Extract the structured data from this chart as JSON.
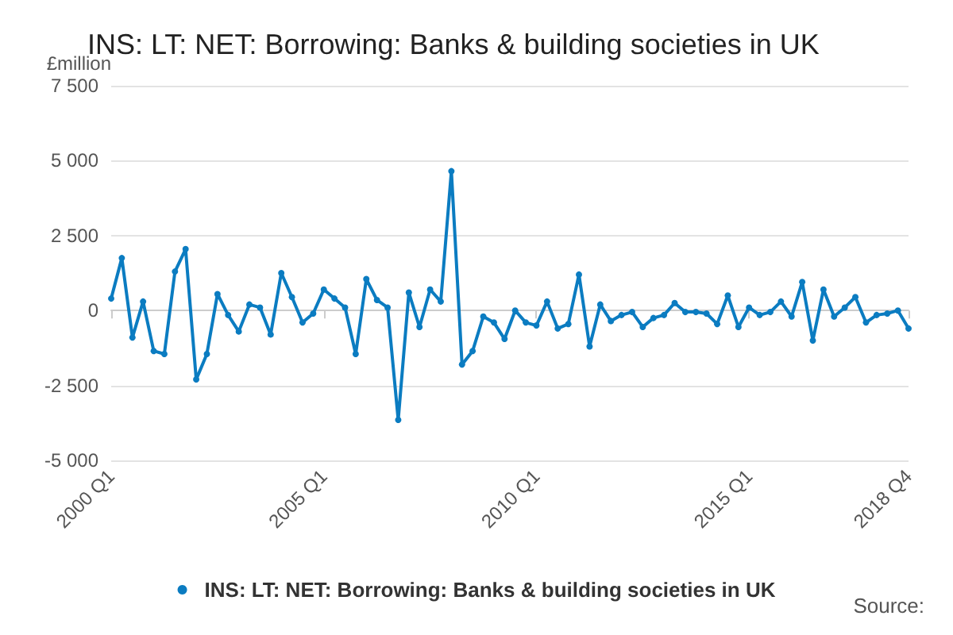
{
  "chart_data": {
    "type": "line",
    "title": "INS: LT: NET: Borrowing: Banks & building societies in UK",
    "ylabel": "£million",
    "annotations": [
      "Source:"
    ],
    "categories": [
      "2000 Q1",
      null,
      null,
      null,
      null,
      null,
      null,
      null,
      null,
      null,
      null,
      null,
      null,
      null,
      null,
      null,
      null,
      null,
      null,
      null,
      "2005 Q1",
      null,
      null,
      null,
      null,
      null,
      null,
      null,
      null,
      null,
      null,
      null,
      null,
      null,
      null,
      null,
      null,
      null,
      null,
      null,
      "2010 Q1",
      null,
      null,
      null,
      null,
      null,
      null,
      null,
      null,
      null,
      null,
      null,
      null,
      null,
      null,
      null,
      null,
      null,
      null,
      null,
      "2015 Q1",
      null,
      null,
      null,
      null,
      null,
      null,
      null,
      null,
      null,
      null,
      null,
      null,
      null,
      null,
      "2018 Q4"
    ],
    "series": [
      {
        "name": "INS: LT: NET: Borrowing: Banks & building societies in UK",
        "color": "#0b7cc1",
        "values": [
          400,
          1750,
          -900,
          300,
          -1350,
          -1450,
          1300,
          2050,
          -2300,
          -1450,
          550,
          -150,
          -700,
          200,
          100,
          -800,
          1250,
          450,
          -400,
          -100,
          700,
          400,
          100,
          -1450,
          1050,
          350,
          100,
          -3650,
          600,
          -550,
          700,
          300,
          4650,
          -1800,
          -1350,
          -200,
          -400,
          -950,
          0,
          -400,
          -500,
          300,
          -600,
          -450,
          1200,
          -1200,
          200,
          -350,
          -150,
          -50,
          -550,
          -250,
          -150,
          250,
          -50,
          -50,
          -100,
          -450,
          500,
          -550,
          100,
          -150,
          -50,
          300,
          -200,
          950,
          -1000,
          700,
          -200,
          100,
          450,
          -400,
          -150,
          -100,
          0,
          -600
        ]
      }
    ],
    "ylim": [
      -5000,
      7500
    ],
    "yticks": [
      {
        "value": -5000,
        "label": "-5 000"
      },
      {
        "value": -2500,
        "label": "-2 500"
      },
      0,
      {
        "value": 2500,
        "label": "2 500"
      },
      {
        "value": 5000,
        "label": "5 000"
      },
      {
        "value": 7500,
        "label": "7 500"
      }
    ],
    "grid": "y",
    "legend": "bottom",
    "marker": "circle",
    "line_style": "solid"
  }
}
